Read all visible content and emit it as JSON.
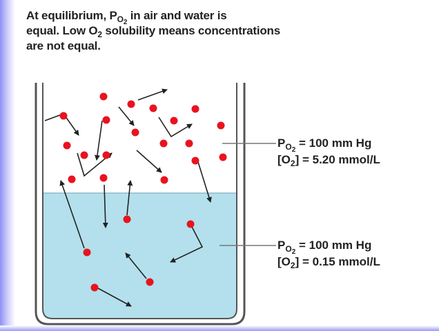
{
  "caption": {
    "line1_a": "At equilibrium, P",
    "line1_sub": "O",
    "line1_subsub": "2",
    "line1_b": "in air and water is",
    "line2_a": "equal. Low O",
    "line2_sub": "2",
    "line2_b": "solubility means concentrations",
    "line3": "are not equal."
  },
  "air_label": {
    "p": "P",
    "p_sub": "O",
    "p_subsub": "2",
    "p_value": "= 100 mm Hg",
    "conc_open": "[O",
    "conc_sub": "2",
    "conc_value": "] = 5.20 mmol/L"
  },
  "water_label": {
    "p": "P",
    "p_sub": "O",
    "p_subsub": "2",
    "p_value": "= 100 mm Hg",
    "conc_open": "[O",
    "conc_sub": "2",
    "conc_value": "] = 0.15 mmol/L"
  }
}
